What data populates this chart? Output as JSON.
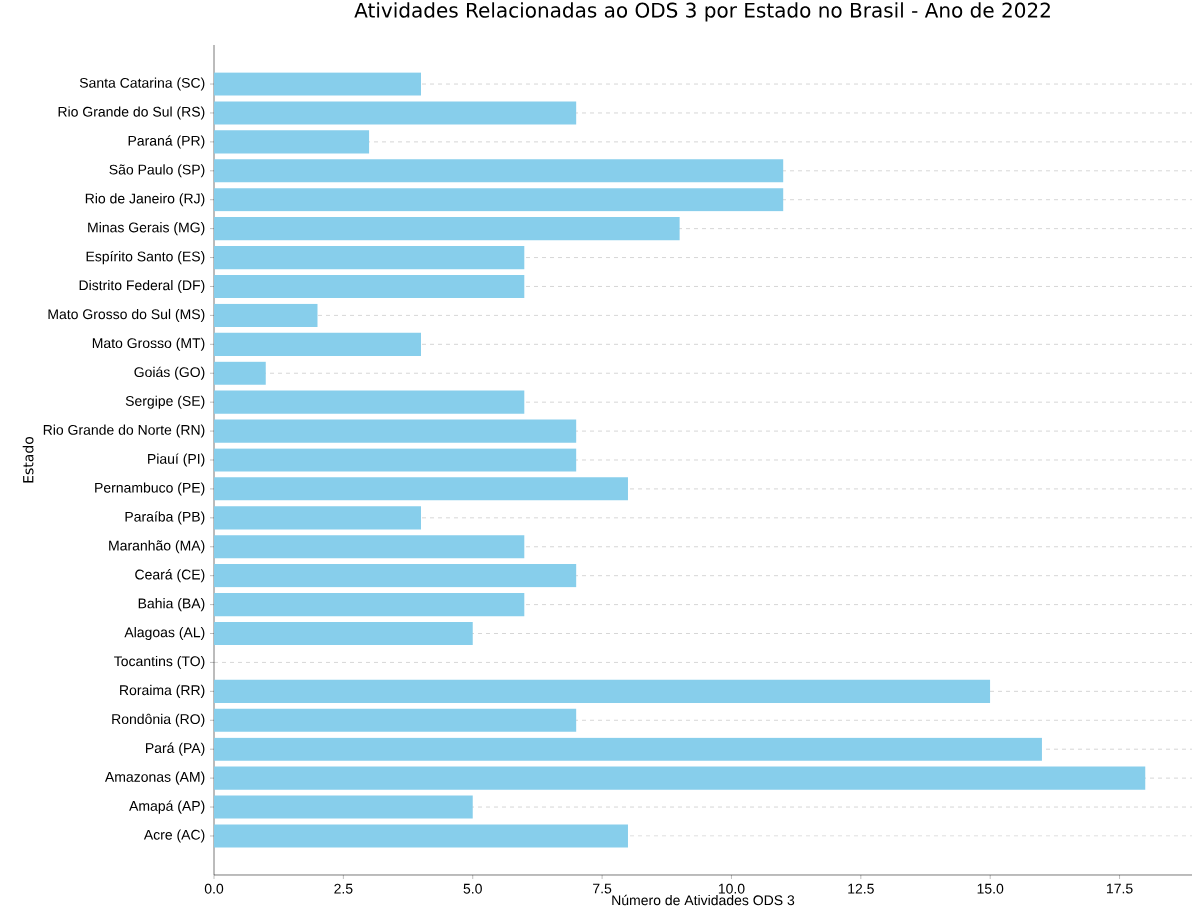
{
  "chart_data": {
    "type": "bar",
    "orientation": "horizontal",
    "title": "Atividades Relacionadas ao ODS 3 por Estado no Brasil - Ano de 2022",
    "xlabel": "Número de Atividades ODS 3",
    "ylabel": "Estado",
    "categories": [
      "Santa Catarina (SC)",
      "Rio Grande do Sul (RS)",
      "Paraná (PR)",
      "São Paulo (SP)",
      "Rio de Janeiro (RJ)",
      "Minas Gerais (MG)",
      "Espírito Santo (ES)",
      "Distrito Federal (DF)",
      "Mato Grosso do Sul (MS)",
      "Mato Grosso (MT)",
      "Goiás (GO)",
      "Sergipe (SE)",
      "Rio Grande do Norte (RN)",
      "Piauí (PI)",
      "Pernambuco (PE)",
      "Paraíba (PB)",
      "Maranhão (MA)",
      "Ceará (CE)",
      "Bahia (BA)",
      "Alagoas (AL)",
      "Tocantins (TO)",
      "Roraima (RR)",
      "Rondônia (RO)",
      "Pará (PA)",
      "Amazonas (AM)",
      "Amapá (AP)",
      "Acre (AC)"
    ],
    "values": [
      4,
      7,
      3,
      11,
      11,
      9,
      6,
      6,
      2,
      4,
      1,
      6,
      7,
      7,
      8,
      4,
      6,
      7,
      6,
      5,
      0,
      15,
      7,
      16,
      18,
      5,
      8
    ],
    "color": "#87ceeb",
    "xlim": [
      0,
      18.9
    ],
    "xticks": [
      {
        "value": 0,
        "label": "0.0"
      },
      {
        "value": 2.5,
        "label": "2.5"
      },
      {
        "value": 5,
        "label": "5.0"
      },
      {
        "value": 7.5,
        "label": "7.5"
      },
      {
        "value": 10,
        "label": "10.0"
      },
      {
        "value": 12.5,
        "label": "12.5"
      },
      {
        "value": 15,
        "label": "15.0"
      },
      {
        "value": 17.5,
        "label": "17.5"
      }
    ],
    "grid": "y"
  }
}
